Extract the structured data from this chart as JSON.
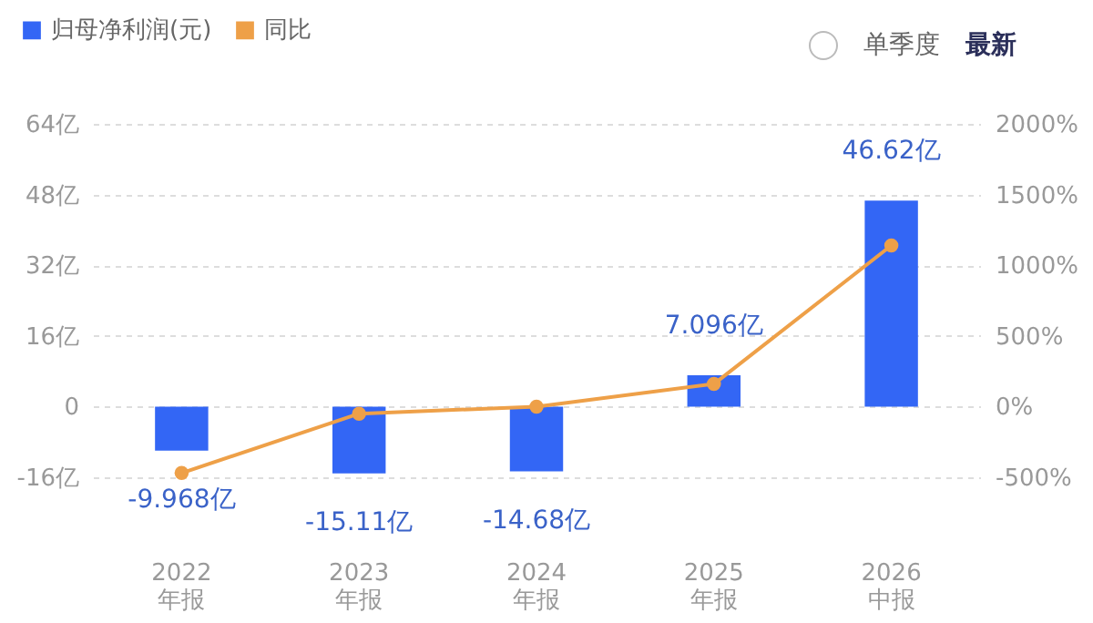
{
  "chart_data": {
    "type": "bar",
    "categories": [
      "2022\n年报",
      "2023\n年报",
      "2024\n年报",
      "2025\n年报",
      "2026\n中报"
    ],
    "series": [
      {
        "name": "归母净利润(元)",
        "color": "#3366f5",
        "values": [
          -9.968,
          -15.11,
          -14.68,
          7.096,
          46.62
        ],
        "value_labels": [
          "-9.968亿",
          "-15.11亿",
          "-14.68亿",
          "7.096亿",
          "46.62亿"
        ]
      },
      {
        "name": "同比",
        "type": "line",
        "axis": "y2",
        "color": "#eea048",
        "marker": "circle",
        "values": [
          -470,
          -50,
          0,
          160,
          1140
        ]
      }
    ],
    "ylim": [
      -16,
      64
    ],
    "yticks": [
      {
        "value": -16,
        "label": "-16亿"
      },
      {
        "value": 0,
        "label": "0"
      },
      {
        "value": 16,
        "label": "16亿"
      },
      {
        "value": 32,
        "label": "32亿"
      },
      {
        "value": 48,
        "label": "48亿"
      },
      {
        "value": 64,
        "label": "64亿"
      }
    ],
    "y2lim": [
      -500,
      2000
    ],
    "y2ticks": [
      {
        "value": -500,
        "label": "-500%"
      },
      {
        "value": 0,
        "label": "0%"
      },
      {
        "value": 500,
        "label": "500%"
      },
      {
        "value": 1000,
        "label": "1000%"
      },
      {
        "value": 1500,
        "label": "1500%"
      },
      {
        "value": 2000,
        "label": "2000%"
      }
    ],
    "grid": "y",
    "legend": "top left",
    "annotations": [
      "单季度",
      "最新"
    ]
  }
}
